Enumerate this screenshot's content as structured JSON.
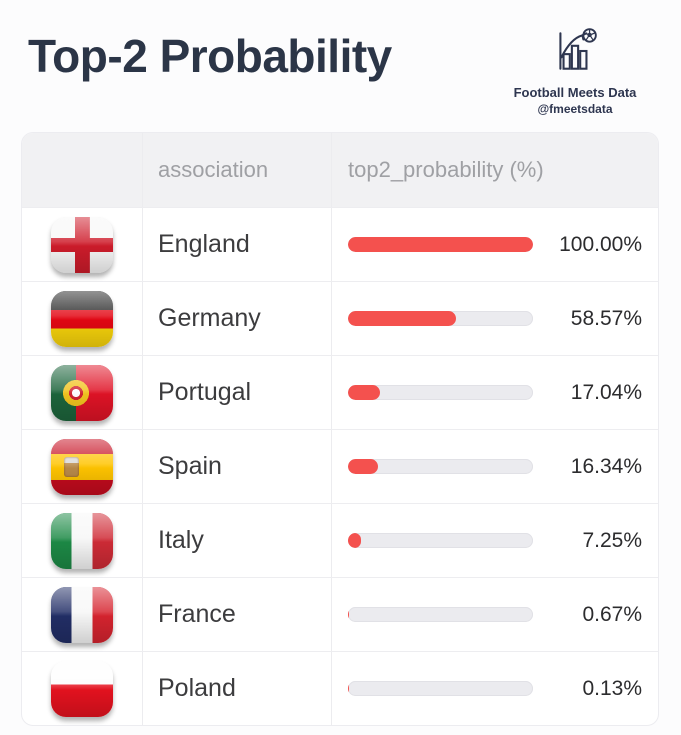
{
  "page": {
    "title": "Top-2 Probability"
  },
  "brand": {
    "icon": "bar-chart-with-football-logo",
    "name": "Football Meets Data",
    "handle": "@fmeetsdata"
  },
  "colors": {
    "title_text": "#2b3547",
    "bar_fill": "#f4514e",
    "bar_track": "#ebebef",
    "header_bg": "#f1f1f3"
  },
  "table": {
    "headers": {
      "flag": "",
      "association": "association",
      "probability": "top2_probability (%)"
    },
    "rows": [
      {
        "country": "England",
        "flag": "england",
        "value": 100.0,
        "label": "100.00%"
      },
      {
        "country": "Germany",
        "flag": "germany",
        "value": 58.57,
        "label": "58.57%"
      },
      {
        "country": "Portugal",
        "flag": "portugal",
        "value": 17.04,
        "label": "17.04%"
      },
      {
        "country": "Spain",
        "flag": "spain",
        "value": 16.34,
        "label": "16.34%"
      },
      {
        "country": "Italy",
        "flag": "italy",
        "value": 7.25,
        "label": "7.25%"
      },
      {
        "country": "France",
        "flag": "france",
        "value": 0.67,
        "label": "0.67%"
      },
      {
        "country": "Poland",
        "flag": "poland",
        "value": 0.13,
        "label": "0.13%"
      }
    ]
  },
  "chart_data": {
    "type": "bar",
    "categories": [
      "England",
      "Germany",
      "Portugal",
      "Spain",
      "Italy",
      "France",
      "Poland"
    ],
    "values": [
      100.0,
      58.57,
      17.04,
      16.34,
      7.25,
      0.67,
      0.13
    ],
    "title": "Top-2 Probability",
    "xlabel": "top2_probability (%)",
    "ylabel": "association",
    "xlim": [
      0,
      100
    ],
    "grid": false,
    "legend": false,
    "orientation": "horizontal"
  }
}
